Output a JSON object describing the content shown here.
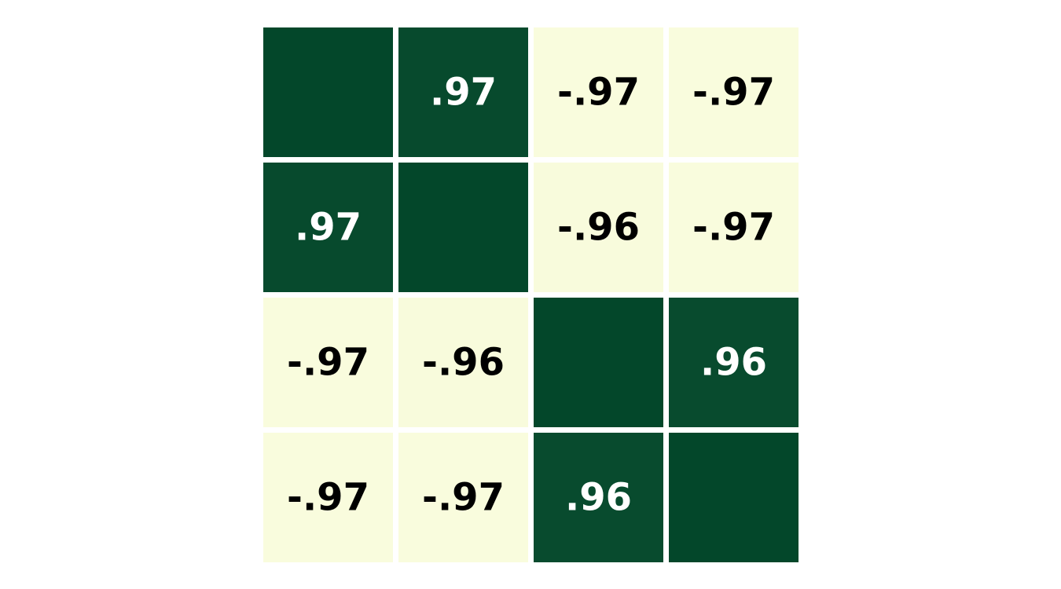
{
  "chart_data": {
    "type": "heatmap",
    "rows": 4,
    "cols": 4,
    "values": [
      [
        1.0,
        0.97,
        -0.97,
        -0.97
      ],
      [
        0.97,
        1.0,
        -0.96,
        -0.97
      ],
      [
        -0.97,
        -0.96,
        1.0,
        0.96
      ],
      [
        -0.97,
        -0.97,
        0.96,
        1.0
      ]
    ],
    "labels": [
      [
        "",
        ".97",
        "-.97",
        "-.97"
      ],
      [
        ".97",
        "",
        "-.96",
        "-.97"
      ],
      [
        "-.97",
        "-.96",
        "",
        ".96"
      ],
      [
        "-.97",
        "-.97",
        ".96",
        ""
      ]
    ],
    "colorscale": {
      "min": -1,
      "max": 1,
      "low_color": "#fdffe0",
      "high_color": "#03472a",
      "light_text": "#ffffff",
      "dark_text": "#000000"
    },
    "grid": false,
    "legend": "none"
  }
}
